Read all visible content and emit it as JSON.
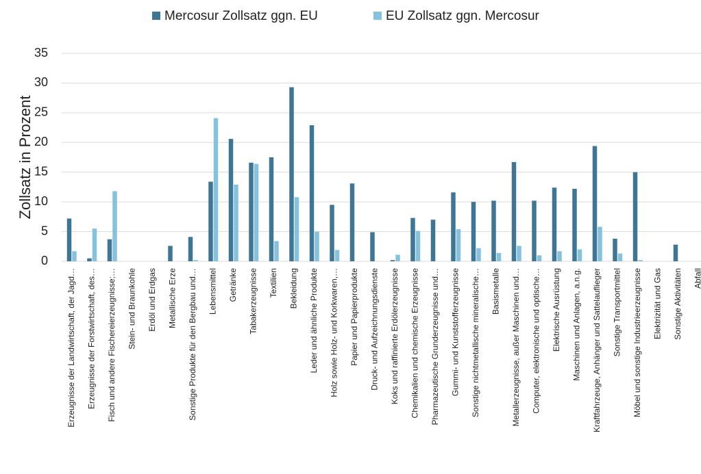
{
  "chart_data": {
    "type": "bar",
    "y_label": "Zollsatz in Prozent",
    "categories": [
      "Erzeugnisse der Landwirtschaft, der Jagd…",
      "Erzeugnisse der Forstwirtschaft, des…",
      "Fisch und andere Fischereierzeugnisse;…",
      "Stein- und Braunkohle",
      "Erdöl und Erdgas",
      "Metallische Erze",
      "Sonstige Produkte für den Bergbau und…",
      "Lebensmittel",
      "Getränke",
      "Tabakerzeugnisse",
      "Textilien",
      "Bekleidung",
      "Leder und ähnliche Produkte",
      "Holz sowie Holz- und Korkwaren,…",
      "Papier und Papierprodukte",
      "Druck- und Aufzeichnungsdienste",
      "Koks und raffinierte Erdölerzeugnisse",
      "Chemikalien und chemische Erzeugnisse",
      "Pharmazeutische Grunderzeugnisse und…",
      "Gummi- und Kunststofferzeugnisse",
      "Sonstige nichtmetallische mineralische…",
      "Basismetalle",
      "Metallerzeugnisse, außer Maschinen und…",
      "Computer, elektronische und optische…",
      "Elektrische Ausrüstung",
      "Maschinen und Anlagen, a.n.g.",
      "Kraftfahrzeuge, Anhänger und Sattelauflieger",
      "Sonstige Transportmittel",
      "Möbel und sonstige Industrieerzeugnisse",
      "Elektrizität und Gas",
      "Sonstige Aktivitäten",
      "Abfall"
    ],
    "series": [
      {
        "name": "Mercosur Zollsatz ggn. EU",
        "color": "#3f7696",
        "values": [
          7.2,
          0.5,
          3.7,
          0,
          0,
          2.6,
          4.1,
          13.4,
          20.6,
          16.6,
          17.5,
          29.3,
          22.9,
          9.5,
          13.1,
          4.9,
          0.2,
          7.3,
          7.0,
          11.6,
          10.0,
          10.2,
          16.7,
          10.2,
          12.4,
          12.2,
          19.4,
          3.8,
          15.0,
          0,
          2.8,
          0
        ]
      },
      {
        "name": "EU Zollsatz ggn. Mercosur",
        "color": "#86c1de",
        "values": [
          1.7,
          5.5,
          11.8,
          0,
          0,
          0,
          0.2,
          24.1,
          12.9,
          16.4,
          3.4,
          10.8,
          5.0,
          1.9,
          0,
          0,
          1.1,
          5.1,
          0,
          5.4,
          2.2,
          1.4,
          2.6,
          1.0,
          1.7,
          2.0,
          5.8,
          1.3,
          0.2,
          0,
          0,
          0
        ]
      }
    ],
    "ylim": [
      0,
      35
    ],
    "yticks": [
      0,
      5,
      10,
      15,
      20,
      25,
      30,
      35
    ],
    "grid": true,
    "legend": "top"
  }
}
